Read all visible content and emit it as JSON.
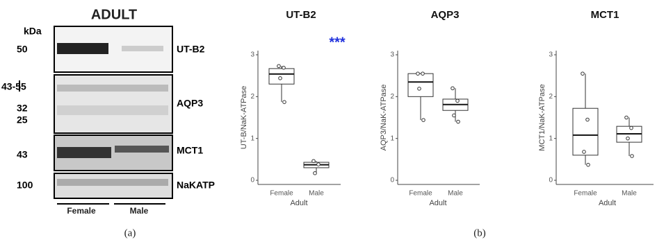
{
  "blot": {
    "title": "ADULT",
    "unit": "kDa",
    "strips": [
      {
        "protein": "UT-B2",
        "markers": [
          "50"
        ]
      },
      {
        "protein": "AQP3",
        "markers": [
          "43-55",
          "32",
          "25"
        ]
      },
      {
        "protein": "MCT1",
        "markers": [
          "43"
        ]
      },
      {
        "protein": "NaKATP",
        "markers": [
          "100"
        ]
      }
    ],
    "groups": [
      "Female",
      "Male"
    ],
    "panel_label": "(a)"
  },
  "panel_b_label": "(b)",
  "chart_data": [
    {
      "type": "box",
      "title": "UT-B2",
      "y_label": "UT-B/NaK-ATPase",
      "x_label": "Adult",
      "categories": [
        "Female",
        "Male"
      ],
      "ylim": [
        0,
        3
      ],
      "yticks": [
        0,
        1,
        2,
        3
      ],
      "boxes": [
        {
          "min": 1.87,
          "q1": 2.3,
          "median": 2.54,
          "q3": 2.67,
          "max": 2.73,
          "points": [
            2.73,
            2.69,
            2.44,
            1.87
          ]
        },
        {
          "min": 0.17,
          "q1": 0.3,
          "median": 0.37,
          "q3": 0.43,
          "max": 0.46,
          "points": [
            0.46,
            0.38,
            0.17
          ]
        }
      ],
      "annotation": {
        "text": "***",
        "category": 1,
        "color": "#2233dd"
      }
    },
    {
      "type": "box",
      "title": "AQP3",
      "y_label": "AQP3/NaK-ATPase",
      "x_label": "Adult",
      "categories": [
        "Female",
        "Male"
      ],
      "ylim": [
        0,
        3
      ],
      "yticks": [
        0,
        1,
        2,
        3
      ],
      "boxes": [
        {
          "min": 1.44,
          "q1": 2.0,
          "median": 2.35,
          "q3": 2.55,
          "max": 2.55,
          "points": [
            2.55,
            2.55,
            2.19,
            1.44
          ]
        },
        {
          "min": 1.4,
          "q1": 1.67,
          "median": 1.81,
          "q3": 1.94,
          "max": 2.2,
          "points": [
            2.2,
            1.9,
            1.55,
            1.4
          ]
        }
      ]
    },
    {
      "type": "box",
      "title": "MCT1",
      "y_label": "MCT1/NaK-ATPase",
      "x_label": "Adult",
      "categories": [
        "Female",
        "Male"
      ],
      "ylim": [
        0,
        3
      ],
      "yticks": [
        0,
        1,
        2,
        3
      ],
      "boxes": [
        {
          "min": 0.37,
          "q1": 0.6,
          "median": 1.08,
          "q3": 1.72,
          "max": 2.55,
          "points": [
            2.55,
            1.45,
            0.68,
            0.37
          ]
        },
        {
          "min": 0.58,
          "q1": 0.91,
          "median": 1.11,
          "q3": 1.29,
          "max": 1.5,
          "points": [
            1.5,
            1.25,
            1.0,
            0.58
          ]
        }
      ]
    }
  ]
}
